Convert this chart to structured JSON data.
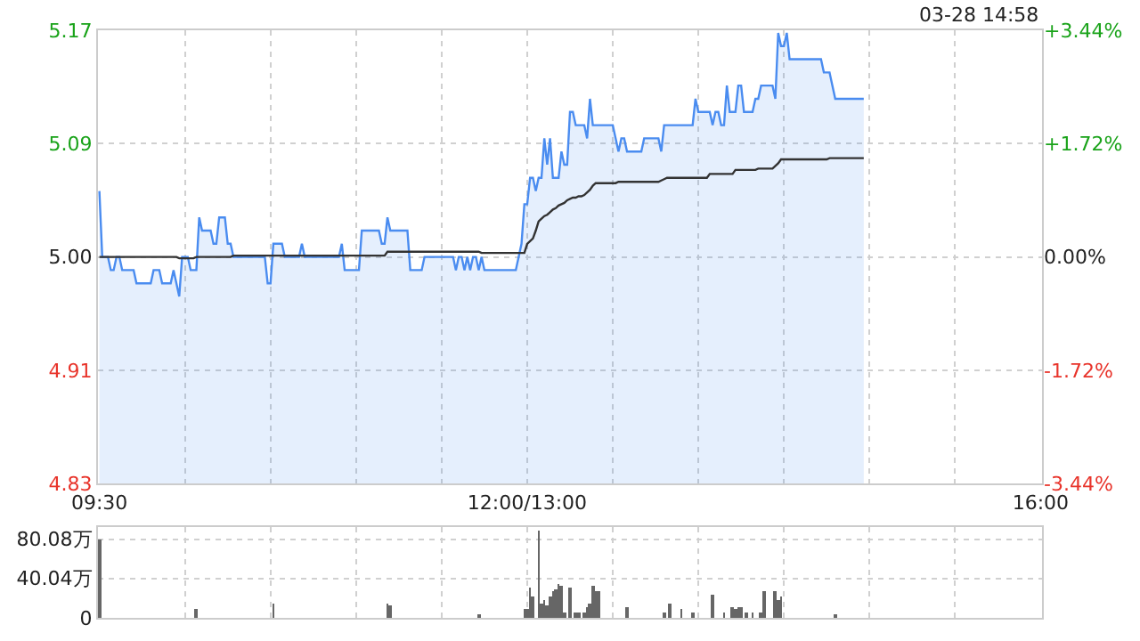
{
  "chart_data": [
    {
      "type": "area",
      "categories": [
        "09:30",
        null,
        null,
        null,
        null,
        null,
        null,
        null,
        null,
        null,
        null,
        null,
        null,
        null,
        null,
        null,
        null,
        null,
        null,
        null,
        null,
        null,
        null,
        null,
        null,
        null,
        null,
        null,
        null,
        null,
        null,
        null,
        null,
        null,
        null,
        null,
        null,
        null,
        null,
        null,
        null,
        null,
        null,
        null,
        null,
        null,
        null,
        null,
        null,
        null,
        null,
        null,
        null,
        null,
        null,
        null,
        null,
        null,
        null,
        null,
        null,
        null,
        null,
        null,
        null,
        null,
        null,
        null,
        null,
        null,
        null,
        null,
        null,
        null,
        null,
        null,
        null,
        null,
        null,
        null,
        null,
        null,
        null,
        null,
        null,
        null,
        null,
        null,
        null,
        null,
        null,
        null,
        null,
        null,
        null,
        null,
        null,
        null,
        null,
        null,
        null,
        null,
        null,
        null,
        null,
        null,
        null,
        null,
        null,
        null,
        null,
        null,
        null,
        null,
        null,
        null,
        null,
        null,
        null,
        null,
        null,
        null,
        null,
        null,
        null,
        null,
        null,
        null,
        null,
        null,
        null,
        null,
        null,
        null,
        null,
        null,
        null,
        null,
        null,
        null,
        null,
        null,
        null,
        null,
        null,
        null,
        null,
        null,
        null,
        null,
        "12:00/13:00",
        null,
        null,
        null,
        null,
        null,
        null,
        null,
        null,
        null,
        null,
        null,
        null,
        null,
        null,
        null,
        null,
        null,
        null,
        null,
        null,
        null,
        null,
        null,
        null,
        null,
        null,
        null,
        null,
        null,
        null,
        null,
        null,
        null,
        null,
        null,
        null,
        null,
        null,
        null,
        null,
        null,
        null,
        null,
        null,
        null,
        null,
        null,
        null,
        null,
        null,
        null,
        null,
        null,
        null,
        null,
        null,
        null,
        null,
        null,
        null,
        null,
        null,
        null,
        null,
        null,
        null,
        null,
        null,
        null,
        null,
        null,
        null,
        null,
        null,
        null,
        null,
        null,
        null,
        null,
        null,
        null,
        null,
        null,
        null,
        null,
        null,
        null,
        null,
        null,
        null,
        null,
        null,
        null,
        null,
        null,
        null,
        null,
        null,
        null,
        null,
        null,
        null,
        null,
        null,
        null,
        null,
        null,
        null,
        null,
        null,
        null,
        null,
        null,
        null,
        null,
        null,
        null,
        null,
        null,
        null,
        null,
        null,
        null,
        null,
        null,
        null,
        null,
        null,
        null,
        null,
        null,
        null,
        null,
        null,
        null,
        null,
        null,
        null,
        null,
        null,
        null,
        null,
        null,
        null,
        null,
        null,
        null,
        null,
        null,
        null,
        null,
        null,
        null,
        null,
        null,
        null,
        null,
        null,
        null,
        null,
        null,
        null,
        null,
        null,
        null,
        null,
        null,
        null,
        null,
        null,
        null,
        null,
        null,
        null,
        null,
        null,
        null,
        null,
        null,
        "16:00"
      ],
      "series": [
        {
          "color": "#4a8cf0",
          "values": [
            5.05,
            5.0,
            5.0,
            5.0,
            4.99,
            4.99,
            5.0,
            5.0,
            4.99,
            4.99,
            4.99,
            4.99,
            4.99,
            4.98,
            4.98,
            4.98,
            4.98,
            4.98,
            4.98,
            4.99,
            4.99,
            4.99,
            4.98,
            4.98,
            4.98,
            4.98,
            4.99,
            4.98,
            4.97,
            5.0,
            5.0,
            5.0,
            4.99,
            4.99,
            4.99,
            5.03,
            5.02,
            5.02,
            5.02,
            5.02,
            5.01,
            5.01,
            5.03,
            5.03,
            5.03,
            5.01,
            5.01,
            5.0,
            5.0,
            5.0,
            5.0,
            5.0,
            5.0,
            5.0,
            5.0,
            5.0,
            5.0,
            5.0,
            5.0,
            4.98,
            4.98,
            5.01,
            5.01,
            5.01,
            5.01,
            5.0,
            5.0,
            5.0,
            5.0,
            5.0,
            5.0,
            5.01,
            5.0,
            5.0,
            5.0,
            5.0,
            5.0,
            5.0,
            5.0,
            5.0,
            5.0,
            5.0,
            5.0,
            5.0,
            5.0,
            5.01,
            4.99,
            4.99,
            4.99,
            4.99,
            4.99,
            4.99,
            5.02,
            5.02,
            5.02,
            5.02,
            5.02,
            5.02,
            5.02,
            5.01,
            5.01,
            5.03,
            5.02,
            5.02,
            5.02,
            5.02,
            5.02,
            5.02,
            5.02,
            4.99,
            4.99,
            4.99,
            4.99,
            4.99,
            5.0,
            5.0,
            5.0,
            5.0,
            5.0,
            5.0,
            5.0,
            5.0,
            5.0,
            5.0,
            5.0,
            4.99,
            5.0,
            5.0,
            4.99,
            5.0,
            4.99,
            5.0,
            5.0,
            4.99,
            5.0,
            4.99,
            4.99,
            4.99,
            4.99,
            4.99,
            4.99,
            4.99,
            4.99,
            4.99,
            4.99,
            4.99,
            4.99,
            5.0,
            5.01,
            5.04,
            5.04,
            5.06,
            5.06,
            5.05,
            5.06,
            5.06,
            5.09,
            5.07,
            5.09,
            5.06,
            5.06,
            5.06,
            5.08,
            5.07,
            5.07,
            5.11,
            5.11,
            5.1,
            5.1,
            5.1,
            5.1,
            5.09,
            5.12,
            5.1,
            5.1,
            5.1,
            5.1,
            5.1,
            5.1,
            5.1,
            5.1,
            5.09,
            5.08,
            5.09,
            5.09,
            5.08,
            5.08,
            5.08,
            5.08,
            5.08,
            5.08,
            5.09,
            5.09,
            5.09,
            5.09,
            5.09,
            5.09,
            5.08,
            5.1,
            5.1,
            5.1,
            5.1,
            5.1,
            5.1,
            5.1,
            5.1,
            5.1,
            5.1,
            5.1,
            5.12,
            5.11,
            5.11,
            5.11,
            5.11,
            5.11,
            5.1,
            5.11,
            5.11,
            5.1,
            5.1,
            5.13,
            5.11,
            5.11,
            5.11,
            5.13,
            5.13,
            5.11,
            5.11,
            5.11,
            5.11,
            5.12,
            5.12,
            5.13,
            5.13,
            5.13,
            5.13,
            5.13,
            5.12,
            5.17,
            5.16,
            5.16,
            5.17,
            5.15,
            5.15,
            5.15,
            5.15,
            5.15,
            5.15,
            5.15,
            5.15,
            5.15,
            5.15,
            5.15,
            5.15,
            5.14,
            5.14,
            5.14,
            5.13,
            5.12,
            5.12,
            5.12,
            5.12,
            5.12,
            5.12,
            5.12,
            5.12,
            5.12,
            5.12,
            5.12,
            null,
            null,
            null,
            null,
            null,
            null,
            null,
            null,
            null,
            null,
            null,
            null,
            null,
            null,
            null,
            null,
            null,
            null,
            null,
            null,
            null,
            null,
            null,
            null,
            null,
            null,
            null,
            null,
            null,
            null,
            null,
            null,
            null,
            null,
            null,
            null,
            null,
            null,
            null,
            null,
            null,
            null,
            null,
            null,
            null,
            null,
            null,
            null,
            null,
            null,
            null,
            null,
            null,
            null,
            null,
            null,
            null,
            null,
            null,
            null,
            null,
            null
          ]
        },
        {
          "type": "line",
          "color": "#333333",
          "values": [
            5.0,
            5.0,
            5.0,
            5.0,
            5.0,
            5.0,
            5.0,
            5.0,
            5.0,
            5.0,
            5.0,
            5.0,
            5.0,
            5.0,
            5.0,
            5.0,
            5.0,
            5.0,
            5.0,
            5.0,
            5.0,
            5.0,
            5.0,
            5.0,
            5.0,
            5.0,
            5.0,
            5.0,
            4.999,
            4.999,
            4.999,
            4.999,
            4.999,
            4.999,
            5.0,
            5.0,
            5.0,
            5.0,
            5.0,
            5.0,
            5.0,
            5.0,
            5.0,
            5.0,
            5.0,
            5.0,
            5.0,
            5.001,
            5.001,
            5.001,
            5.001,
            5.001,
            5.001,
            5.001,
            5.001,
            5.001,
            5.001,
            5.001,
            5.001,
            5.001,
            5.001,
            5.001,
            5.001,
            5.001,
            5.001,
            5.001,
            5.001,
            5.001,
            5.001,
            5.001,
            5.001,
            5.001,
            5.001,
            5.001,
            5.001,
            5.001,
            5.001,
            5.001,
            5.001,
            5.001,
            5.001,
            5.001,
            5.001,
            5.001,
            5.001,
            5.001,
            5.001,
            5.001,
            5.001,
            5.001,
            5.001,
            5.001,
            5.001,
            5.001,
            5.001,
            5.001,
            5.001,
            5.001,
            5.001,
            5.001,
            5.001,
            5.004,
            5.004,
            5.004,
            5.004,
            5.004,
            5.004,
            5.004,
            5.004,
            5.004,
            5.004,
            5.004,
            5.004,
            5.004,
            5.004,
            5.004,
            5.004,
            5.004,
            5.004,
            5.004,
            5.004,
            5.004,
            5.004,
            5.004,
            5.004,
            5.004,
            5.004,
            5.004,
            5.004,
            5.004,
            5.004,
            5.004,
            5.004,
            5.004,
            5.003,
            5.003,
            5.003,
            5.003,
            5.003,
            5.003,
            5.003,
            5.003,
            5.003,
            5.003,
            5.003,
            5.003,
            5.003,
            5.003,
            5.003,
            5.003,
            5.01,
            5.012,
            5.014,
            5.02,
            5.027,
            5.029,
            5.031,
            5.032,
            5.034,
            5.036,
            5.037,
            5.039,
            5.04,
            5.041,
            5.043,
            5.044,
            5.045,
            5.045,
            5.046,
            5.046,
            5.047,
            5.049,
            5.051,
            5.054,
            5.056,
            5.056,
            5.056,
            5.056,
            5.056,
            5.056,
            5.056,
            5.056,
            5.057,
            5.057,
            5.057,
            5.057,
            5.057,
            5.057,
            5.057,
            5.057,
            5.057,
            5.057,
            5.057,
            5.057,
            5.057,
            5.057,
            5.057,
            5.058,
            5.059,
            5.06,
            5.06,
            5.06,
            5.06,
            5.06,
            5.06,
            5.06,
            5.06,
            5.06,
            5.06,
            5.06,
            5.06,
            5.06,
            5.06,
            5.06,
            5.063,
            5.063,
            5.063,
            5.063,
            5.063,
            5.063,
            5.063,
            5.063,
            5.063,
            5.066,
            5.066,
            5.066,
            5.066,
            5.066,
            5.066,
            5.066,
            5.066,
            5.067,
            5.067,
            5.067,
            5.067,
            5.067,
            5.067,
            5.069,
            5.071,
            5.074,
            5.074,
            5.074,
            5.074,
            5.074,
            5.074,
            5.074,
            5.074,
            5.074,
            5.074,
            5.074,
            5.074,
            5.074,
            5.074,
            5.074,
            5.074,
            5.074,
            5.075,
            5.075,
            5.075,
            5.075,
            5.075,
            5.075,
            5.075,
            5.075,
            5.075,
            5.075,
            5.075,
            5.075,
            5.075,
            null,
            null,
            null,
            null,
            null,
            null,
            null,
            null,
            null,
            null,
            null,
            null,
            null,
            null,
            null,
            null,
            null,
            null,
            null,
            null,
            null,
            null,
            null,
            null,
            null,
            null,
            null,
            null,
            null,
            null,
            null,
            null,
            null,
            null,
            null,
            null,
            null,
            null,
            null,
            null,
            null,
            null,
            null,
            null,
            null,
            null,
            null,
            null,
            null,
            null,
            null,
            null,
            null,
            null,
            null,
            null,
            null,
            null,
            null,
            null,
            null,
            null
          ]
        }
      ],
      "ylim": [
        4.828,
        5.172
      ],
      "yticks": [
        {
          "value": 5.172,
          "label": "5.17"
        },
        {
          "value": 5.086,
          "label": "5.09"
        },
        {
          "value": 5.0,
          "label": "5.00"
        },
        {
          "value": 4.914,
          "label": "4.91"
        },
        {
          "value": 4.828,
          "label": "4.83"
        }
      ],
      "y2lim": [
        -3.44,
        3.44
      ],
      "y2ticks": [
        {
          "value": 3.44,
          "label": "+3.44%"
        },
        {
          "value": 1.72,
          "label": "+1.72%"
        },
        {
          "value": 0,
          "label": "0.00%"
        },
        {
          "value": -1.72,
          "label": "-1.72%"
        },
        {
          "value": -3.44,
          "label": "-3.44%"
        }
      ],
      "annotations": [
        "03-28 14:58"
      ],
      "grid": true,
      "marker": "none",
      "line_style": "solid"
    },
    {
      "type": "bar",
      "categories": [
        null,
        null,
        null,
        null,
        null,
        null,
        null,
        null,
        null,
        null,
        null,
        null,
        null,
        null,
        null,
        null,
        null,
        null,
        null,
        null,
        null,
        null,
        null,
        null,
        null,
        null,
        null,
        null,
        null,
        null,
        null,
        null,
        null,
        null,
        null,
        null,
        null,
        null,
        null,
        null,
        null,
        null,
        null,
        null,
        null,
        null,
        null,
        null,
        null,
        null,
        null,
        null,
        null,
        null,
        null,
        null,
        null,
        null,
        null,
        null,
        null,
        null,
        null,
        null,
        null,
        null,
        null,
        null,
        null,
        null,
        null,
        null,
        null,
        null,
        null,
        null,
        null,
        null,
        null,
        null,
        null,
        null,
        null,
        null,
        null,
        null,
        null,
        null,
        null,
        null,
        null,
        null,
        null,
        null,
        null,
        null,
        null,
        null,
        null,
        null,
        null,
        null,
        null,
        null,
        null,
        null,
        null,
        null,
        null,
        null,
        null,
        null,
        null,
        null,
        null,
        null,
        null,
        null,
        null,
        null,
        null,
        null,
        null,
        null,
        null,
        null,
        null,
        null,
        null,
        null,
        null,
        null,
        null,
        null,
        null,
        null,
        null,
        null,
        null,
        null,
        null,
        null,
        null,
        null,
        null,
        null,
        null,
        null,
        null,
        null,
        null,
        null,
        null,
        null,
        null,
        null,
        null,
        null,
        null,
        null,
        null,
        null,
        null,
        null,
        null,
        null,
        null,
        null,
        null,
        null,
        null,
        null,
        null,
        null,
        null,
        null,
        null,
        null,
        null,
        null,
        null,
        null,
        null,
        null,
        null,
        null,
        null,
        null,
        null,
        null,
        null,
        null,
        null,
        null,
        null,
        null,
        null,
        null,
        null,
        null,
        null,
        null,
        null,
        null,
        null,
        null,
        null,
        null,
        null,
        null,
        null,
        null,
        null,
        null,
        null,
        null,
        null,
        null,
        null,
        null,
        null,
        null,
        null,
        null,
        null,
        null,
        null,
        null,
        null,
        null,
        null,
        null,
        null,
        null,
        null,
        null,
        null,
        null,
        null,
        null,
        null,
        null,
        null,
        null,
        null,
        null,
        null,
        null,
        null,
        null,
        null,
        null,
        null,
        null,
        null,
        null,
        null,
        null,
        null,
        null,
        null,
        null,
        null,
        null,
        null,
        null,
        null,
        null,
        null,
        null,
        null,
        null,
        null,
        null,
        null,
        null,
        null,
        null,
        null,
        null,
        null,
        null,
        null,
        null,
        null,
        null,
        null,
        null,
        null,
        null,
        null,
        null,
        null,
        null,
        null,
        null,
        null,
        null,
        null,
        null,
        null,
        null,
        null,
        null,
        null,
        null,
        null,
        null,
        null,
        null,
        null,
        null,
        null,
        null,
        null,
        null,
        null,
        null,
        null,
        null,
        null,
        null,
        null,
        null,
        null,
        null,
        null,
        null,
        null,
        null,
        null
      ],
      "values": [
        80,
        null,
        null,
        null,
        null,
        null,
        null,
        null,
        null,
        null,
        null,
        null,
        null,
        null,
        null,
        null,
        null,
        null,
        null,
        null,
        null,
        null,
        null,
        null,
        null,
        null,
        null,
        null,
        null,
        null,
        null,
        null,
        null,
        null,
        8,
        null,
        null,
        null,
        null,
        null,
        null,
        null,
        null,
        null,
        null,
        null,
        null,
        null,
        null,
        null,
        null,
        null,
        null,
        null,
        null,
        null,
        null,
        null,
        null,
        null,
        null,
        15,
        null,
        null,
        null,
        null,
        null,
        null,
        null,
        null,
        null,
        null,
        null,
        null,
        null,
        null,
        null,
        null,
        null,
        null,
        null,
        null,
        null,
        null,
        null,
        null,
        null,
        null,
        null,
        null,
        null,
        null,
        null,
        null,
        null,
        null,
        null,
        null,
        null,
        null,
        null,
        15,
        13,
        null,
        null,
        null,
        null,
        null,
        null,
        null,
        null,
        null,
        null,
        null,
        null,
        null,
        null,
        null,
        null,
        null,
        null,
        null,
        null,
        null,
        null,
        null,
        null,
        null,
        null,
        null,
        null,
        null,
        null,
        4,
        null,
        null,
        null,
        null,
        null,
        null,
        null,
        null,
        null,
        null,
        null,
        null,
        null,
        null,
        null,
        8,
        8,
        30,
        21,
        null,
        88,
        14,
        18,
        13,
        21,
        26,
        29,
        34,
        33,
        5,
        null,
        31,
        null,
        6,
        6,
        null,
        6,
        11,
        15,
        32,
        26,
        26,
        null,
        null,
        null,
        null,
        null,
        null,
        null,
        null,
        null,
        11,
        null,
        null,
        null,
        null,
        null,
        null,
        null,
        null,
        null,
        null,
        null,
        null,
        6,
        null,
        15,
        null,
        null,
        null,
        9,
        null,
        null,
        null,
        5,
        null,
        null,
        null,
        null,
        null,
        null,
        24,
        null,
        null,
        null,
        5,
        null,
        null,
        11,
        9,
        10,
        11,
        null,
        6,
        null,
        5,
        null,
        null,
        6,
        26,
        null,
        null,
        null,
        26,
        18,
        21,
        null,
        null,
        null,
        null,
        null,
        null,
        null,
        null,
        null,
        null,
        null,
        null,
        null,
        null,
        null,
        null,
        null,
        null,
        3,
        null,
        null,
        null,
        null,
        null,
        null,
        null,
        null,
        null,
        null,
        null,
        null,
        null,
        null,
        null,
        null,
        null,
        null,
        null,
        null,
        null,
        null,
        null,
        null,
        null,
        null,
        null,
        null,
        null,
        null,
        null,
        null,
        null,
        null,
        null,
        null,
        null,
        null,
        null,
        null,
        null,
        null,
        null,
        null,
        null,
        null,
        null,
        null,
        null,
        null,
        null,
        null,
        null,
        null,
        null,
        null,
        null,
        null,
        null,
        null,
        null,
        null,
        null,
        null,
        null,
        null,
        null,
        null,
        null,
        null,
        null,
        null
      ],
      "color": "#666666",
      "ylim": [
        0,
        92
      ],
      "yticks": [
        0,
        {
          "value": 40.04,
          "label": "40.04万"
        },
        {
          "value": 80.08,
          "label": "80.08万"
        }
      ],
      "tick_labels": "y",
      "grid": true
    }
  ]
}
